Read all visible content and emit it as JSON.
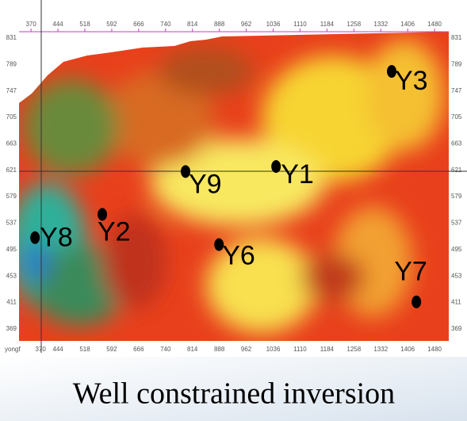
{
  "chart_data": {
    "type": "scatter",
    "title": "Well constrained inversion",
    "corner_label": "yongf",
    "xlim": [
      337,
      1519
    ],
    "ylim": [
      350,
      841
    ],
    "xticks": [
      370,
      444,
      518,
      592,
      666,
      740,
      814,
      888,
      962,
      1036,
      1110,
      1184,
      1258,
      1332,
      1406,
      1480
    ],
    "yticks": [
      369,
      411,
      453,
      495,
      537,
      579,
      621,
      663,
      705,
      747,
      789,
      831
    ],
    "labels": [
      "Y3",
      "Y9",
      "Y1",
      "Y2",
      "Y8",
      "Y6",
      "Y7"
    ],
    "x": [
      1362,
      795,
      1044,
      566,
      381,
      887,
      1430
    ],
    "y": [
      778,
      619,
      627,
      551,
      514,
      503,
      412
    ],
    "color": "#000000"
  }
}
